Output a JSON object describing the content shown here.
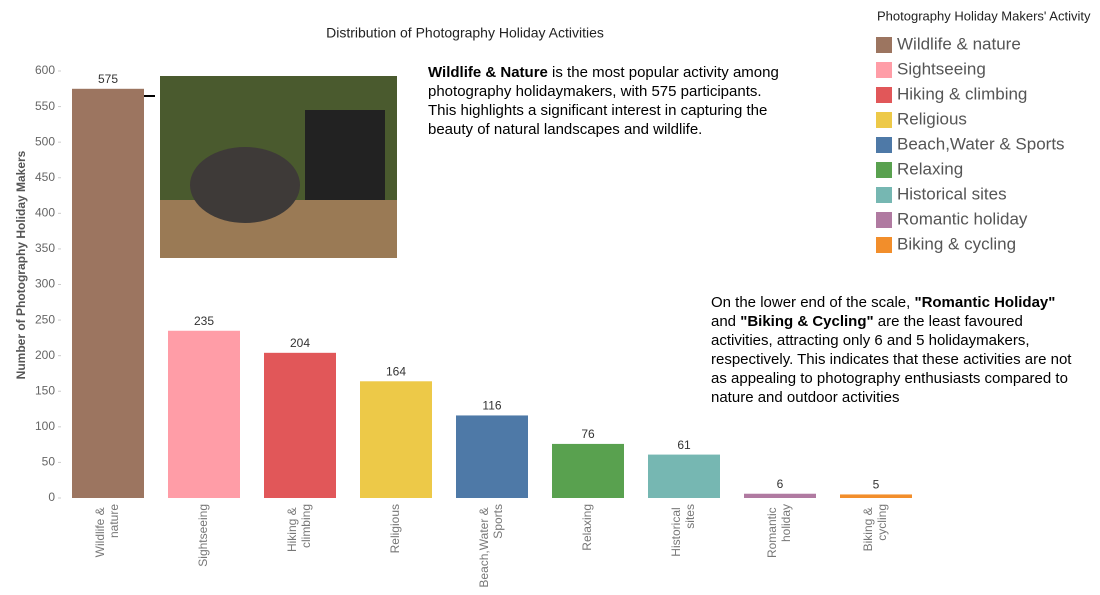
{
  "chart_data": {
    "type": "bar",
    "title": "Distribution of Photography Holiday Activities",
    "y_label": "Number of Photography Holiday Makers",
    "categories": [
      "Wildlife & nature",
      "Sightseeing",
      "Hiking & climbing",
      "Religious",
      "Beach,Water & Sports",
      "Relaxing",
      "Historical sites",
      "Romantic holiday",
      "Biking & cycling"
    ],
    "values": [
      575,
      235,
      204,
      164,
      116,
      76,
      61,
      6,
      5
    ],
    "colors": [
      "#9c7560",
      "#ff9da7",
      "#e15759",
      "#edc948",
      "#4e79a7",
      "#59a14f",
      "#76b7b2",
      "#b07aa1",
      "#f28e2b"
    ],
    "ylim": [
      0,
      600
    ],
    "yticks": [
      0,
      50,
      100,
      150,
      200,
      250,
      300,
      350,
      400,
      450,
      500,
      550,
      600
    ],
    "legend_title": "Photography Holiday Makers' Activity",
    "legend": "right",
    "annotations": [
      {
        "parts": [
          {
            "text": "Wildlife & Nature",
            "bold": true
          },
          {
            "text": " is the most popular activity among photography holidaymakers, with 575 participants. This highlights a significant interest in capturing the beauty of natural landscapes and wildlife.",
            "bold": false
          }
        ]
      },
      {
        "parts": [
          {
            "text": "On the lower end of the scale, ",
            "bold": false
          },
          {
            "text": "\"Romantic Holiday\"",
            "bold": true
          },
          {
            "text": " and ",
            "bold": false
          },
          {
            "text": "\"Biking & Cycling\"",
            "bold": true
          },
          {
            "text": " are the least favoured activities, attracting only 6 and 5 holidaymakers, respectively. This indicates that these activities are not as appealing to photography enthusiasts compared to nature and outdoor activities",
            "bold": false
          }
        ]
      }
    ]
  }
}
